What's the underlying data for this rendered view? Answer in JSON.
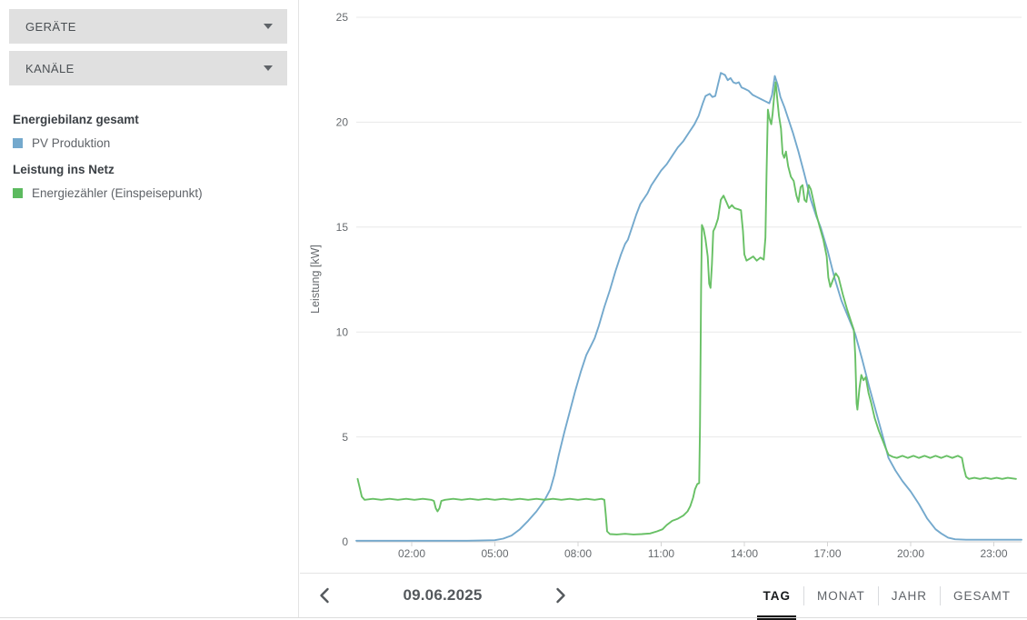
{
  "sidebar": {
    "devices_label": "GERÄTE",
    "channels_label": "KANÄLE",
    "groups": [
      {
        "heading": "Energiebilanz gesamt",
        "items": [
          {
            "label": "PV Produktion",
            "color": "#74a9cd"
          }
        ]
      },
      {
        "heading": "Leistung ins Netz",
        "items": [
          {
            "label": "Energiezähler (Einspeisepunkt)",
            "color": "#5cba5f"
          }
        ]
      }
    ]
  },
  "toolbar": {
    "date": "09.06.2025",
    "prev_icon": "chevron-left",
    "next_icon": "chevron-right",
    "tabs": [
      {
        "label": "TAG",
        "active": true
      },
      {
        "label": "MONAT",
        "active": false
      },
      {
        "label": "JAHR",
        "active": false
      },
      {
        "label": "GESAMT",
        "active": false
      }
    ]
  },
  "chart_data": {
    "type": "line",
    "title": "",
    "xlabel": "",
    "ylabel": "Leistung [kW]",
    "xlim_hours": [
      0,
      24
    ],
    "ylim": [
      0,
      25
    ],
    "grid": true,
    "legend_position": "left-sidebar",
    "y_ticks": [
      0,
      5,
      10,
      15,
      20,
      25
    ],
    "x_ticks": [
      {
        "hour": 2,
        "label": "02:00"
      },
      {
        "hour": 5,
        "label": "05:00"
      },
      {
        "hour": 8,
        "label": "08:00"
      },
      {
        "hour": 11,
        "label": "11:00"
      },
      {
        "hour": 14,
        "label": "14:00"
      },
      {
        "hour": 17,
        "label": "17:00"
      },
      {
        "hour": 20,
        "label": "20:00"
      },
      {
        "hour": 23,
        "label": "23:00"
      }
    ],
    "series": [
      {
        "name": "PV Produktion",
        "color": "#74a9cd",
        "points": [
          [
            0,
            0.05
          ],
          [
            1,
            0.05
          ],
          [
            2,
            0.05
          ],
          [
            3,
            0.05
          ],
          [
            4,
            0.05
          ],
          [
            5,
            0.08
          ],
          [
            5.3,
            0.15
          ],
          [
            5.6,
            0.3
          ],
          [
            5.9,
            0.6
          ],
          [
            6.2,
            1.0
          ],
          [
            6.5,
            1.45
          ],
          [
            6.8,
            2.0
          ],
          [
            7.0,
            2.5
          ],
          [
            7.15,
            3.2
          ],
          [
            7.3,
            4.1
          ],
          [
            7.5,
            5.2
          ],
          [
            7.7,
            6.2
          ],
          [
            7.9,
            7.2
          ],
          [
            8.1,
            8.1
          ],
          [
            8.3,
            8.9
          ],
          [
            8.45,
            9.3
          ],
          [
            8.6,
            9.7
          ],
          [
            8.75,
            10.3
          ],
          [
            8.95,
            11.2
          ],
          [
            9.15,
            12.0
          ],
          [
            9.35,
            12.9
          ],
          [
            9.55,
            13.7
          ],
          [
            9.7,
            14.2
          ],
          [
            9.8,
            14.4
          ],
          [
            9.95,
            15.0
          ],
          [
            10.1,
            15.6
          ],
          [
            10.25,
            16.1
          ],
          [
            10.4,
            16.4
          ],
          [
            10.5,
            16.6
          ],
          [
            10.65,
            17.0
          ],
          [
            10.8,
            17.3
          ],
          [
            11.0,
            17.7
          ],
          [
            11.2,
            18.0
          ],
          [
            11.4,
            18.4
          ],
          [
            11.6,
            18.8
          ],
          [
            11.8,
            19.1
          ],
          [
            12.0,
            19.5
          ],
          [
            12.2,
            19.9
          ],
          [
            12.35,
            20.3
          ],
          [
            12.5,
            20.9
          ],
          [
            12.6,
            21.25
          ],
          [
            12.75,
            21.35
          ],
          [
            12.85,
            21.2
          ],
          [
            12.95,
            21.25
          ],
          [
            13.05,
            21.8
          ],
          [
            13.15,
            22.35
          ],
          [
            13.3,
            22.25
          ],
          [
            13.4,
            22.0
          ],
          [
            13.5,
            22.1
          ],
          [
            13.6,
            21.9
          ],
          [
            13.7,
            21.85
          ],
          [
            13.8,
            21.9
          ],
          [
            13.9,
            21.65
          ],
          [
            14.0,
            21.6
          ],
          [
            14.15,
            21.5
          ],
          [
            14.3,
            21.3
          ],
          [
            14.45,
            21.2
          ],
          [
            14.6,
            21.1
          ],
          [
            14.75,
            21.0
          ],
          [
            14.9,
            20.9
          ],
          [
            15.0,
            21.3
          ],
          [
            15.1,
            22.2
          ],
          [
            15.2,
            21.8
          ],
          [
            15.3,
            21.2
          ],
          [
            15.45,
            20.7
          ],
          [
            15.6,
            20.1
          ],
          [
            15.75,
            19.5
          ],
          [
            15.95,
            18.6
          ],
          [
            16.15,
            17.6
          ],
          [
            16.4,
            16.3
          ],
          [
            16.6,
            15.5
          ],
          [
            16.75,
            15.0
          ],
          [
            17.0,
            13.9
          ],
          [
            17.25,
            12.6
          ],
          [
            17.5,
            11.5
          ],
          [
            17.75,
            10.7
          ],
          [
            18.0,
            9.9
          ],
          [
            18.25,
            8.7
          ],
          [
            18.5,
            7.4
          ],
          [
            18.75,
            6.2
          ],
          [
            19.0,
            5.0
          ],
          [
            19.2,
            4.0
          ],
          [
            19.45,
            3.4
          ],
          [
            19.7,
            2.9
          ],
          [
            20.0,
            2.4
          ],
          [
            20.3,
            1.8
          ],
          [
            20.6,
            1.1
          ],
          [
            20.9,
            0.6
          ],
          [
            21.1,
            0.4
          ],
          [
            21.35,
            0.2
          ],
          [
            21.6,
            0.12
          ],
          [
            22.0,
            0.1
          ],
          [
            22.5,
            0.1
          ],
          [
            23.0,
            0.1
          ],
          [
            23.5,
            0.1
          ],
          [
            24.0,
            0.1
          ]
        ]
      },
      {
        "name": "Energiezähler (Einspeisepunkt)",
        "color": "#68c065",
        "points": [
          [
            0.05,
            3.0
          ],
          [
            0.12,
            2.6
          ],
          [
            0.2,
            2.15
          ],
          [
            0.3,
            2.0
          ],
          [
            0.6,
            2.05
          ],
          [
            0.9,
            2.0
          ],
          [
            1.2,
            2.05
          ],
          [
            1.5,
            2.0
          ],
          [
            1.8,
            2.05
          ],
          [
            2.1,
            2.0
          ],
          [
            2.4,
            2.05
          ],
          [
            2.7,
            2.0
          ],
          [
            2.8,
            1.95
          ],
          [
            2.87,
            1.6
          ],
          [
            2.93,
            1.45
          ],
          [
            3.0,
            1.6
          ],
          [
            3.07,
            1.95
          ],
          [
            3.2,
            2.0
          ],
          [
            3.5,
            2.05
          ],
          [
            3.8,
            2.0
          ],
          [
            4.1,
            2.05
          ],
          [
            4.4,
            2.0
          ],
          [
            4.7,
            2.05
          ],
          [
            5.0,
            2.0
          ],
          [
            5.3,
            2.05
          ],
          [
            5.6,
            2.0
          ],
          [
            5.9,
            2.05
          ],
          [
            6.2,
            2.0
          ],
          [
            6.5,
            2.05
          ],
          [
            6.8,
            2.0
          ],
          [
            7.1,
            2.05
          ],
          [
            7.4,
            2.0
          ],
          [
            7.7,
            2.05
          ],
          [
            8.0,
            2.0
          ],
          [
            8.3,
            2.05
          ],
          [
            8.6,
            2.0
          ],
          [
            8.85,
            2.05
          ],
          [
            8.95,
            2.0
          ],
          [
            9.0,
            1.3
          ],
          [
            9.05,
            0.5
          ],
          [
            9.15,
            0.37
          ],
          [
            9.4,
            0.35
          ],
          [
            9.7,
            0.38
          ],
          [
            10.0,
            0.35
          ],
          [
            10.3,
            0.37
          ],
          [
            10.6,
            0.4
          ],
          [
            10.85,
            0.5
          ],
          [
            11.05,
            0.6
          ],
          [
            11.2,
            0.8
          ],
          [
            11.4,
            1.0
          ],
          [
            11.6,
            1.1
          ],
          [
            11.8,
            1.25
          ],
          [
            11.95,
            1.45
          ],
          [
            12.05,
            1.7
          ],
          [
            12.15,
            2.1
          ],
          [
            12.22,
            2.5
          ],
          [
            12.3,
            2.75
          ],
          [
            12.37,
            2.8
          ],
          [
            12.4,
            5.5
          ],
          [
            12.44,
            12.0
          ],
          [
            12.47,
            15.1
          ],
          [
            12.53,
            14.9
          ],
          [
            12.6,
            14.4
          ],
          [
            12.68,
            13.6
          ],
          [
            12.73,
            12.3
          ],
          [
            12.78,
            12.1
          ],
          [
            12.83,
            13.2
          ],
          [
            12.88,
            14.8
          ],
          [
            12.95,
            15.0
          ],
          [
            13.05,
            15.4
          ],
          [
            13.15,
            16.3
          ],
          [
            13.25,
            16.5
          ],
          [
            13.35,
            16.2
          ],
          [
            13.45,
            15.9
          ],
          [
            13.55,
            16.05
          ],
          [
            13.65,
            15.9
          ],
          [
            13.78,
            15.85
          ],
          [
            13.88,
            15.8
          ],
          [
            13.95,
            14.8
          ],
          [
            14.0,
            13.7
          ],
          [
            14.08,
            13.4
          ],
          [
            14.2,
            13.5
          ],
          [
            14.32,
            13.6
          ],
          [
            14.45,
            13.4
          ],
          [
            14.58,
            13.55
          ],
          [
            14.7,
            13.45
          ],
          [
            14.76,
            14.5
          ],
          [
            14.8,
            17.5
          ],
          [
            14.85,
            20.6
          ],
          [
            14.9,
            20.2
          ],
          [
            14.97,
            19.9
          ],
          [
            15.02,
            20.4
          ],
          [
            15.08,
            21.3
          ],
          [
            15.13,
            21.9
          ],
          [
            15.18,
            21.2
          ],
          [
            15.25,
            20.3
          ],
          [
            15.32,
            19.7
          ],
          [
            15.38,
            18.5
          ],
          [
            15.44,
            18.3
          ],
          [
            15.5,
            18.6
          ],
          [
            15.58,
            17.9
          ],
          [
            15.68,
            17.4
          ],
          [
            15.78,
            17.2
          ],
          [
            15.88,
            16.5
          ],
          [
            15.95,
            16.2
          ],
          [
            16.03,
            16.9
          ],
          [
            16.1,
            17.0
          ],
          [
            16.17,
            16.3
          ],
          [
            16.24,
            16.2
          ],
          [
            16.32,
            17.0
          ],
          [
            16.4,
            16.8
          ],
          [
            16.5,
            16.2
          ],
          [
            16.6,
            15.6
          ],
          [
            16.72,
            15.0
          ],
          [
            16.85,
            14.4
          ],
          [
            16.97,
            13.6
          ],
          [
            17.03,
            12.6
          ],
          [
            17.1,
            12.15
          ],
          [
            17.2,
            12.5
          ],
          [
            17.3,
            12.8
          ],
          [
            17.4,
            12.6
          ],
          [
            17.55,
            11.8
          ],
          [
            17.7,
            11.1
          ],
          [
            17.85,
            10.5
          ],
          [
            17.95,
            10.1
          ],
          [
            18.0,
            8.9
          ],
          [
            18.05,
            6.6
          ],
          [
            18.08,
            6.3
          ],
          [
            18.15,
            7.3
          ],
          [
            18.22,
            7.95
          ],
          [
            18.3,
            7.7
          ],
          [
            18.38,
            7.85
          ],
          [
            18.48,
            7.1
          ],
          [
            18.58,
            6.6
          ],
          [
            18.7,
            5.9
          ],
          [
            18.85,
            5.3
          ],
          [
            19.0,
            4.8
          ],
          [
            19.1,
            4.45
          ],
          [
            19.2,
            4.15
          ],
          [
            19.35,
            4.05
          ],
          [
            19.5,
            4.0
          ],
          [
            19.7,
            4.1
          ],
          [
            19.9,
            4.0
          ],
          [
            20.1,
            4.1
          ],
          [
            20.3,
            4.0
          ],
          [
            20.5,
            4.1
          ],
          [
            20.7,
            4.0
          ],
          [
            20.9,
            4.1
          ],
          [
            21.1,
            4.0
          ],
          [
            21.3,
            4.1
          ],
          [
            21.5,
            4.0
          ],
          [
            21.7,
            4.1
          ],
          [
            21.85,
            4.0
          ],
          [
            21.92,
            3.5
          ],
          [
            22.0,
            3.1
          ],
          [
            22.1,
            3.0
          ],
          [
            22.3,
            3.05
          ],
          [
            22.5,
            3.0
          ],
          [
            22.7,
            3.05
          ],
          [
            22.9,
            3.0
          ],
          [
            23.1,
            3.05
          ],
          [
            23.3,
            3.0
          ],
          [
            23.5,
            3.05
          ],
          [
            23.8,
            3.0
          ]
        ]
      }
    ]
  }
}
